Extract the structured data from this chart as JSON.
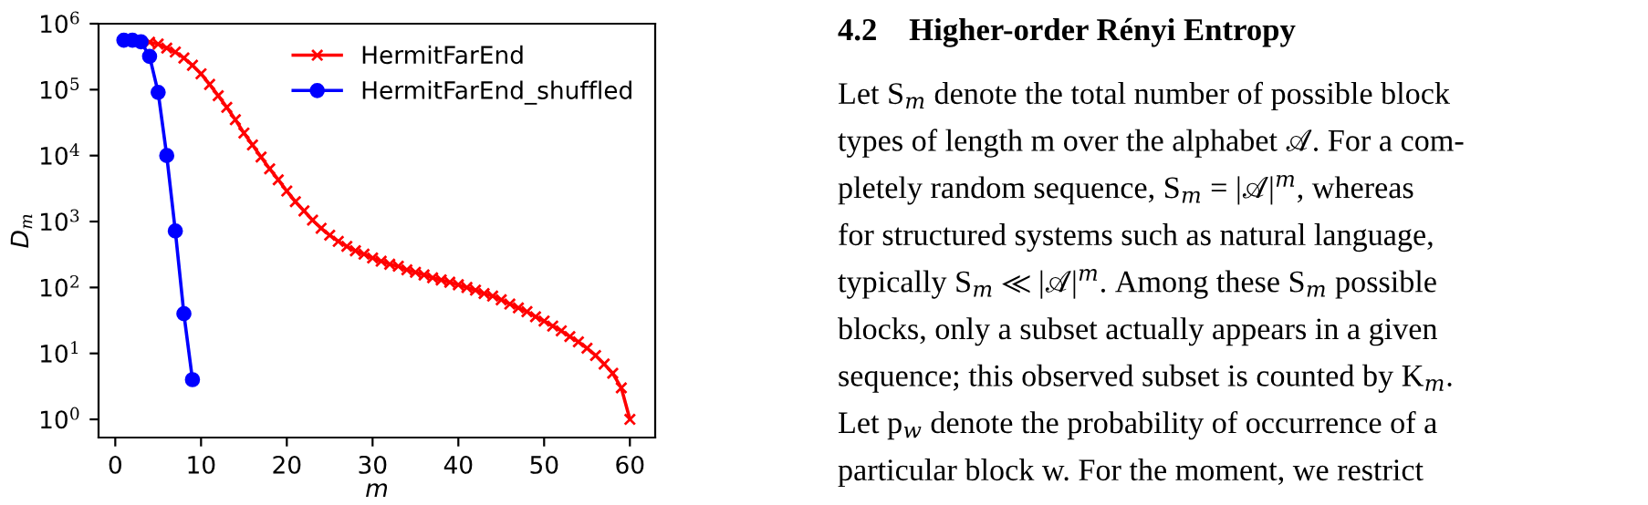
{
  "chart_data": {
    "type": "line",
    "xlabel": "m",
    "ylabel": "D$_{m}$",
    "log": "y",
    "xlim": [
      -1.95,
      62.95
    ],
    "xticks": [
      0,
      10,
      20,
      30,
      40,
      50,
      60
    ],
    "ylim": [
      0.53,
      1000000
    ],
    "yticks": [
      {
        "value": 1,
        "label": "10$^{0}$"
      },
      {
        "value": 10,
        "label": "10$^{1}$"
      },
      {
        "value": 100,
        "label": "10$^{2}$"
      },
      {
        "value": 1000,
        "label": "10$^{3}$"
      },
      {
        "value": 10000,
        "label": "10$^{4}$"
      },
      {
        "value": 100000,
        "label": "10$^{5}$"
      },
      {
        "value": 1000000,
        "label": "10$^{6}$"
      }
    ],
    "grid": false,
    "legend": "top right",
    "series": [
      {
        "name": "HermitFarEnd",
        "color": "#ff0000",
        "marker": "cross",
        "x": [
          4,
          5,
          6,
          7,
          8,
          9,
          10,
          11,
          12,
          13,
          14,
          15,
          16,
          17,
          18,
          19,
          20,
          21,
          22,
          23,
          24,
          25,
          26,
          27,
          28,
          29,
          30,
          31,
          32,
          33,
          34,
          35,
          36,
          37,
          38,
          39,
          40,
          41,
          42,
          43,
          44,
          45,
          46,
          47,
          48,
          49,
          50,
          51,
          52,
          53,
          54,
          55,
          56,
          57,
          58,
          59,
          60
        ],
        "values": [
          525000,
          490000,
          427000,
          372000,
          302000,
          234000,
          174000,
          120000,
          81000,
          54000,
          35000,
          22000,
          14500,
          9500,
          6300,
          4300,
          2900,
          2000,
          1450,
          1050,
          790,
          620,
          500,
          420,
          360,
          320,
          280,
          250,
          225,
          210,
          185,
          170,
          155,
          140,
          130,
          120,
          110,
          100,
          91,
          81,
          74,
          65,
          56,
          49,
          43,
          36,
          31,
          26,
          22,
          18,
          15,
          12,
          9.3,
          6.9,
          5,
          3,
          1
        ]
      },
      {
        "name": "HermitFarEnd_shuffled",
        "color": "#0000ff",
        "marker": "circle",
        "x": [
          1,
          2,
          3,
          4,
          5,
          6,
          7,
          8,
          9
        ],
        "values": [
          562000,
          562000,
          530000,
          320000,
          91000,
          10000,
          720,
          40,
          4
        ]
      }
    ],
    "annotations": [
      "4.2    Higher-order Rényi Entropy",
      "Let S$_{m}$ denote the total number of possible block",
      "types of length m over the alphabet 𝒜. For a com-",
      "pletely random sequence, S$_{m}$ = |𝒜|$^{m}$, whereas",
      "for structured systems such as natural language,",
      "typically S$_{m}$ ≪ |𝒜|$^{m}$. Among these S$_{m}$ possible",
      "blocks, only a subset actually appears in a given",
      "sequence; this observed subset is counted by K$_{m}$.",
      "Let p$_{w}$ denote the probability of occurrence of a",
      "particular block w. For the moment, we restrict"
    ]
  }
}
